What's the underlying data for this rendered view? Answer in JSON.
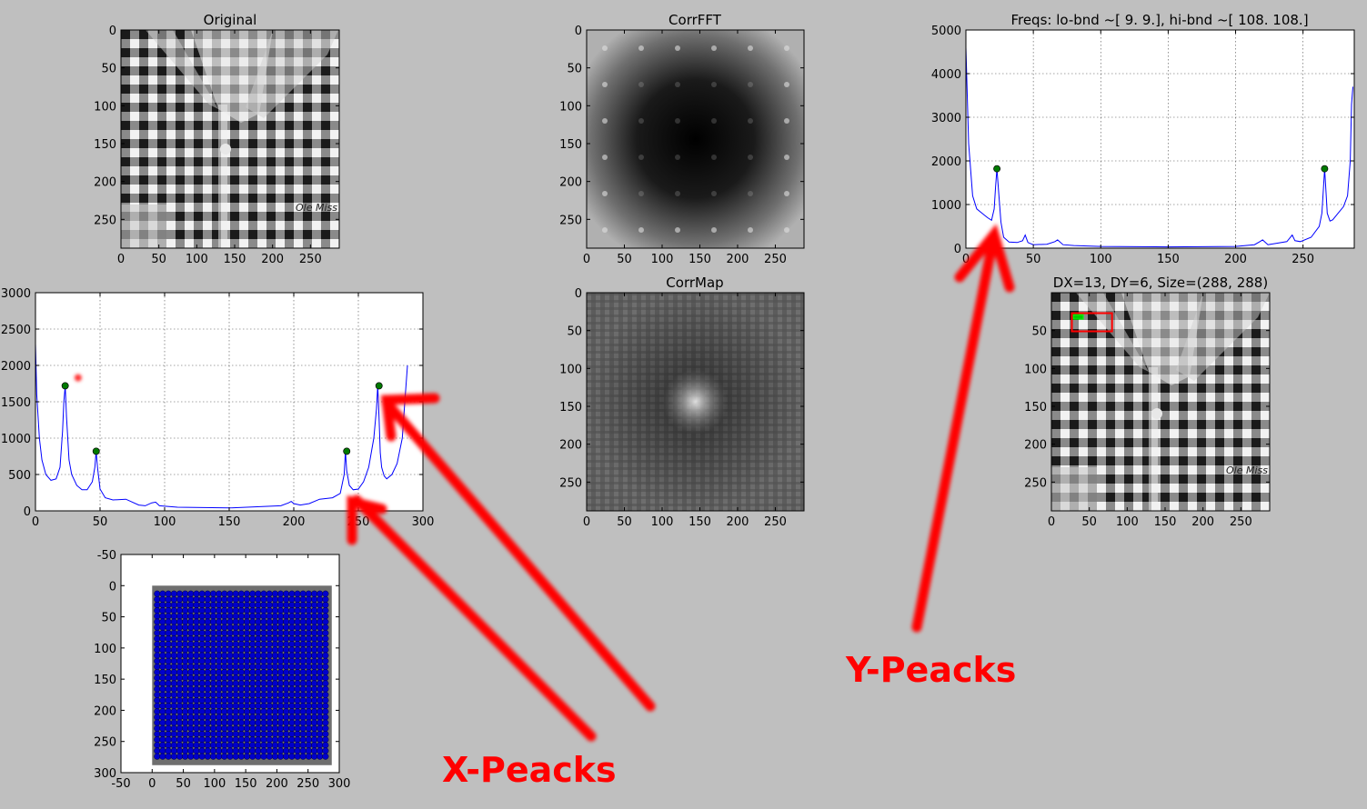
{
  "chart_data": [
    {
      "id": "original",
      "type": "image",
      "title": "Original",
      "xticks": [
        0,
        50,
        100,
        150,
        200,
        250
      ],
      "yticks": [
        0,
        50,
        100,
        150,
        200,
        250
      ],
      "xlim": [
        0,
        288
      ],
      "ylim": [
        288,
        0
      ],
      "logo_text": "Ole Miss"
    },
    {
      "id": "corrfft",
      "type": "image",
      "title": "CorrFFT",
      "xticks": [
        0,
        50,
        100,
        150,
        200,
        250
      ],
      "yticks": [
        0,
        50,
        100,
        150,
        200,
        250
      ],
      "xlim": [
        0,
        288
      ],
      "ylim": [
        288,
        0
      ]
    },
    {
      "id": "freqs",
      "type": "line",
      "title": "Freqs: lo-bnd ~[ 9.  9.], hi-bnd ~[ 108.  108.]",
      "xticks": [
        0,
        50,
        100,
        150,
        200,
        250
      ],
      "yticks": [
        0,
        1000,
        2000,
        3000,
        4000,
        5000
      ],
      "xlim": [
        0,
        288
      ],
      "ylim": [
        0,
        5000
      ],
      "grid": true,
      "line_color": "#0000ff",
      "series": [
        {
          "x": [
            0,
            2,
            5,
            8,
            12,
            16,
            19,
            21,
            22,
            23,
            24,
            26,
            28,
            32,
            38,
            42,
            44,
            46,
            50,
            60,
            66,
            68,
            72,
            80,
            100,
            150,
            200,
            214,
            218,
            220,
            224,
            238,
            242,
            244,
            248,
            256,
            262,
            264,
            265,
            266,
            267,
            268,
            270,
            272,
            276,
            280,
            283,
            285,
            286,
            287
          ],
          "y": [
            4600,
            2400,
            1200,
            900,
            800,
            700,
            640,
            900,
            1400,
            1820,
            1400,
            600,
            250,
            140,
            130,
            170,
            300,
            130,
            80,
            90,
            150,
            190,
            80,
            60,
            40,
            30,
            40,
            80,
            150,
            190,
            80,
            150,
            300,
            170,
            150,
            250,
            500,
            800,
            1300,
            1820,
            1300,
            800,
            620,
            650,
            800,
            950,
            1200,
            2000,
            3300,
            3700
          ]
        }
      ],
      "peaks": {
        "x": [
          23,
          266
        ],
        "y": [
          1820,
          1820
        ]
      }
    },
    {
      "id": "xprofile",
      "type": "line",
      "title": "",
      "xticks": [
        0,
        50,
        100,
        150,
        200,
        250,
        300
      ],
      "yticks": [
        0,
        500,
        1000,
        1500,
        2000,
        2500,
        3000
      ],
      "xlim": [
        0,
        300
      ],
      "ylim": [
        0,
        3000
      ],
      "grid": true,
      "line_color": "#0000ff",
      "series": [
        {
          "x": [
            0,
            1,
            3,
            5,
            8,
            12,
            16,
            19,
            21,
            22,
            23,
            24,
            26,
            28,
            32,
            36,
            40,
            44,
            46,
            47,
            48,
            50,
            54,
            60,
            70,
            80,
            85,
            90,
            93,
            96,
            110,
            150,
            190,
            196,
            198,
            200,
            205,
            212,
            220,
            230,
            236,
            239,
            240,
            241,
            243,
            246,
            250,
            254,
            258,
            262,
            264,
            265,
            266,
            267,
            268,
            270,
            272,
            276,
            280,
            284,
            286,
            288
          ],
          "y": [
            2300,
            1600,
            1000,
            700,
            500,
            420,
            440,
            600,
            1100,
            1500,
            1720,
            1300,
            700,
            500,
            350,
            290,
            290,
            400,
            600,
            820,
            600,
            300,
            180,
            150,
            160,
            80,
            70,
            110,
            120,
            70,
            50,
            40,
            70,
            110,
            130,
            100,
            80,
            100,
            160,
            180,
            240,
            500,
            820,
            550,
            350,
            290,
            300,
            400,
            600,
            1000,
            1400,
            1720,
            1300,
            800,
            600,
            480,
            440,
            500,
            650,
            1000,
            1500,
            2000
          ]
        }
      ],
      "peaks": {
        "x": [
          23,
          47,
          241,
          266
        ],
        "y": [
          1720,
          820,
          820,
          1720
        ]
      },
      "marker_point": {
        "x": 33,
        "y": 1830
      }
    },
    {
      "id": "corrmap",
      "type": "image",
      "title": "CorrMap",
      "xticks": [
        0,
        50,
        100,
        150,
        200,
        250
      ],
      "yticks": [
        0,
        50,
        100,
        150,
        200,
        250
      ],
      "xlim": [
        0,
        288
      ],
      "ylim": [
        288,
        0
      ]
    },
    {
      "id": "detected",
      "type": "image",
      "title": "DX=13, DY=6, Size=(288, 288)",
      "xticks": [
        0,
        50,
        100,
        150,
        200,
        250
      ],
      "yticks": [
        50,
        100,
        150,
        200,
        250
      ],
      "xlim": [
        0,
        288
      ],
      "ylim": [
        288,
        0
      ],
      "logo_text": "Ole Miss",
      "red_box": {
        "x0": 27,
        "y0": 27,
        "x1": 80,
        "y1": 51
      },
      "green_box": {
        "x0": 29,
        "y0": 29,
        "x1": 42,
        "y1": 35
      }
    },
    {
      "id": "grid-points",
      "type": "scatter",
      "title": "",
      "xticks": [
        -50,
        0,
        50,
        100,
        150,
        200,
        250,
        300
      ],
      "yticks": [
        -50,
        0,
        50,
        100,
        150,
        200,
        250,
        300
      ],
      "xlim": [
        -50,
        300
      ],
      "ylim": [
        300,
        -50
      ],
      "point_color": "#0000cc",
      "grid_spacing": {
        "dx": 9,
        "dy": 9,
        "start_x": 8,
        "start_y": 13,
        "end_x": 283,
        "end_y": 275
      }
    }
  ],
  "annotations": {
    "x_label": "X-Peacks",
    "y_label": "Y-Peacks",
    "color": "#ff0000"
  }
}
